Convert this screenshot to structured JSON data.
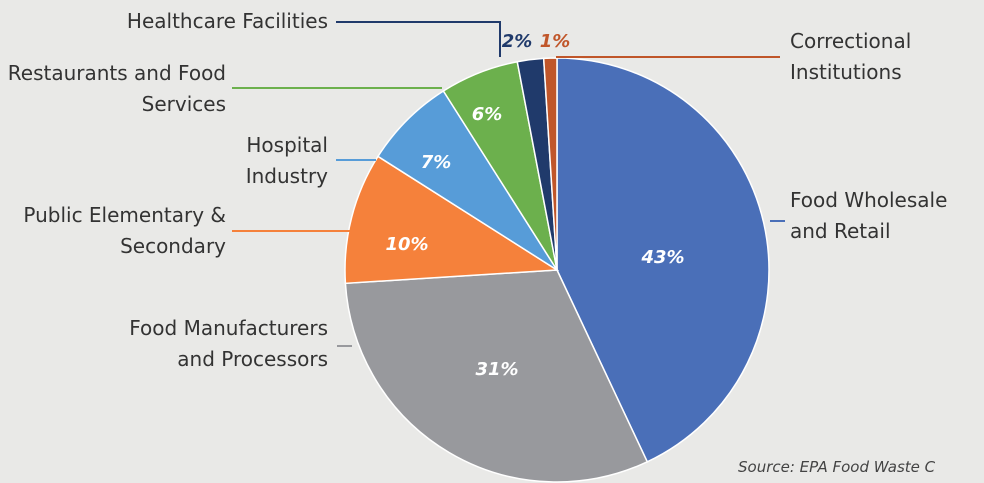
{
  "chart_data": {
    "type": "pie",
    "categories": [
      "Food Wholesale and Retail",
      "Food Manufacturers and Processors",
      "Public Elementary & Secondary",
      "Hospital Industry",
      "Restaurants and Food Services",
      "Healthcare Facilities",
      "Correctional Institutions"
    ],
    "values": [
      43,
      31,
      10,
      7,
      6,
      2,
      1
    ],
    "value_labels": [
      "43%",
      "31%",
      "10%",
      "7%",
      "6%",
      "2%",
      "1%"
    ],
    "colors": [
      "#4a6fb8",
      "#98999d",
      "#f5813b",
      "#579cd8",
      "#6cb04d",
      "#203a6b",
      "#c0562a"
    ],
    "source": "Source: EPA Food Waste C"
  }
}
